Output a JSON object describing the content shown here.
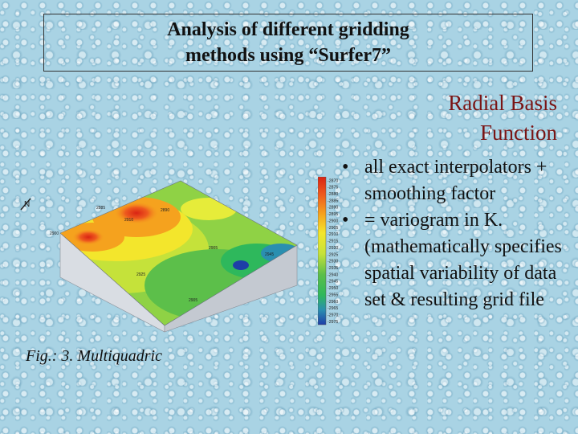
{
  "title": {
    "line1": "Analysis of different gridding",
    "line2": "methods using “Surfer7”"
  },
  "subtitle": {
    "line1": "Radial Basis",
    "line2": "Function"
  },
  "bullets": [
    "all exact interpolators + smoothing factor",
    "= variogram in K. (mathematically specifies spatial variability of data set & resulting grid file"
  ],
  "caption": "Fig.: 3. Multiquadric",
  "figure": {
    "north_label": "N",
    "contour_labels": [
      "2885",
      "2900",
      "2910",
      "2890",
      "2905",
      "2925",
      "2945",
      "2905"
    ],
    "colorbar_labels": [
      "2870",
      "2875",
      "2880",
      "2885",
      "2890",
      "2895",
      "2900",
      "2905",
      "2910",
      "2915",
      "2920",
      "2925",
      "2930",
      "2935",
      "2940",
      "2945",
      "2950",
      "2955",
      "2960",
      "2965",
      "2970",
      "2975"
    ],
    "colors": {
      "title": "#111111",
      "subtitle": "#7a1414",
      "peak": "#e0321c",
      "high": "#f5a21e",
      "mid": "#f3e62c",
      "low": "#2eb85c",
      "lowest": "#1e3ea8"
    }
  }
}
